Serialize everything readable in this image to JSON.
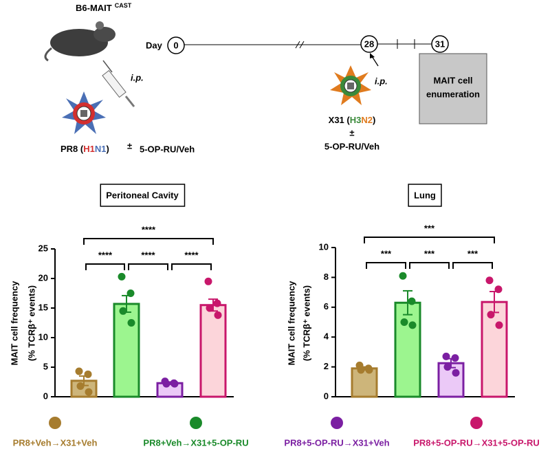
{
  "schematic": {
    "strain": "B6-MAIT",
    "strain_sup": "CAST",
    "day_label": "Day",
    "days": [
      0,
      28,
      31
    ],
    "ip": [
      "i.p.",
      "i.p."
    ],
    "enumeration": [
      "MAIT cell",
      "enumeration"
    ],
    "virus1": [
      "PR8 (",
      "H1",
      "N1",
      ")"
    ],
    "virus1_colors": [
      "#000000",
      "#d32f2f",
      "#4a6fb5",
      "#000000"
    ],
    "virus2": [
      "X31 (",
      "H3",
      "N2",
      ")"
    ],
    "virus2_colors": [
      "#000000",
      "#3a8a3a",
      "#e07b1e",
      "#000000"
    ],
    "pm": [
      "±",
      "±"
    ],
    "treatment": [
      "5-OP-RU/Veh",
      "5-OP-RU/Veh"
    ]
  },
  "legend": {
    "labels": [
      "PR8+Veh→X31+Veh",
      "PR8+Veh→X31+5-OP-RU",
      "PR8+5-OP-RU→X31+Veh",
      "PR8+5-OP-RU→X31+5-OP-RU"
    ],
    "colors": [
      "#a67c2e",
      "#1a8a2a",
      "#7b1fa2",
      "#c8176b"
    ],
    "fills": [
      "#cdb57a",
      "#9cf58f",
      "#ebc9f7",
      "#fcd5da"
    ]
  },
  "chart_data": [
    {
      "type": "bar",
      "title": "Peritoneal Cavity",
      "y_label": [
        "MAIT cell frequency",
        "(% TCRβ⁺ events)"
      ],
      "values": [
        2.7,
        15.7,
        2.3,
        15.5
      ],
      "errors": [
        0.8,
        1.4,
        0.2,
        1.0
      ],
      "points": [
        [
          4.3,
          3.8,
          1.8,
          0.8
        ],
        [
          20.3,
          17.5,
          14.5,
          12.5
        ],
        [
          2.6,
          2.3,
          2.2,
          2.2
        ],
        [
          19.5,
          15.8,
          15.0,
          13.8
        ]
      ],
      "ylim": [
        0,
        25
      ],
      "yticks": [
        0,
        5,
        10,
        15,
        20,
        25
      ],
      "significance": [
        "****",
        "****",
        "****",
        "****"
      ]
    },
    {
      "type": "bar",
      "title": "Lung",
      "y_label": [
        "MAIT cell frequency",
        "(% TCRβ⁺ events)"
      ],
      "values": [
        1.9,
        6.3,
        2.25,
        6.35
      ],
      "errors": [
        0.1,
        0.8,
        0.3,
        0.7
      ],
      "points": [
        [
          2.1,
          1.9,
          1.8,
          1.8
        ],
        [
          8.1,
          6.4,
          5.0,
          4.8
        ],
        [
          2.7,
          2.6,
          2.0,
          1.6
        ],
        [
          7.8,
          7.2,
          5.5,
          4.8
        ]
      ],
      "ylim": [
        0,
        10
      ],
      "yticks": [
        0,
        2,
        4,
        6,
        8,
        10
      ],
      "significance": [
        "***",
        "***",
        "***",
        "***"
      ]
    }
  ]
}
